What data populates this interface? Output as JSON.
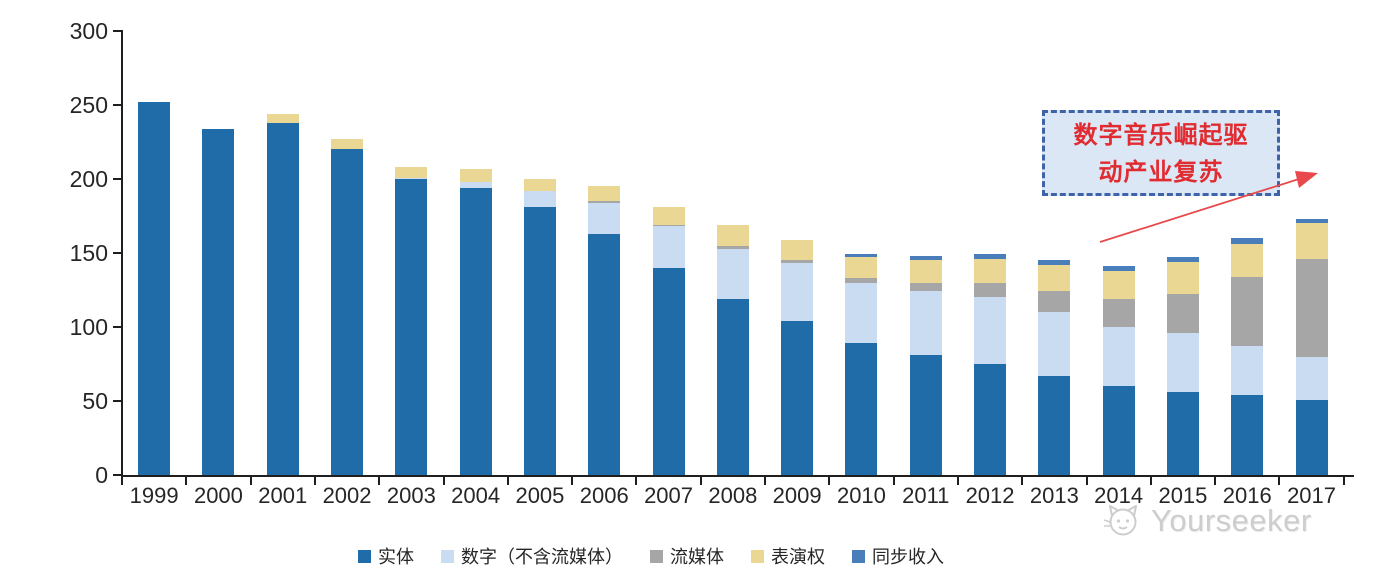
{
  "chart_data": {
    "type": "bar",
    "stacked": true,
    "title": "",
    "xlabel": "",
    "ylabel": "",
    "categories": [
      "1999",
      "2000",
      "2001",
      "2002",
      "2003",
      "2004",
      "2005",
      "2006",
      "2007",
      "2008",
      "2009",
      "2010",
      "2011",
      "2012",
      "2013",
      "2014",
      "2015",
      "2016",
      "2017"
    ],
    "series": [
      {
        "name": "实体",
        "color": "#1f6ca8",
        "values": [
          252,
          234,
          238,
          220,
          200,
          194,
          181,
          163,
          140,
          119,
          104,
          89,
          81,
          75,
          67,
          60,
          56,
          54,
          51
        ]
      },
      {
        "name": "数字（不含流媒体）",
        "color": "#c9dcf1",
        "values": [
          0,
          0,
          0,
          0,
          1,
          4,
          11,
          21,
          28,
          34,
          39,
          41,
          43,
          45,
          43,
          40,
          40,
          33,
          29
        ]
      },
      {
        "name": "流媒体",
        "color": "#a6a6a6",
        "values": [
          0,
          0,
          0,
          0,
          0,
          0,
          0,
          1,
          1,
          2,
          2,
          3,
          6,
          10,
          14,
          19,
          26,
          47,
          66
        ]
      },
      {
        "name": "表演权",
        "color": "#ebd794",
        "values": [
          0,
          0,
          6,
          7,
          7,
          9,
          8,
          10,
          12,
          14,
          14,
          14,
          15,
          16,
          18,
          19,
          22,
          22,
          24
        ]
      },
      {
        "name": "同步收入",
        "color": "#4a7ebb",
        "values": [
          0,
          0,
          0,
          0,
          0,
          0,
          0,
          0,
          0,
          0,
          0,
          2,
          3,
          3,
          3,
          3,
          3,
          4,
          3
        ]
      }
    ],
    "yticks": [
      0,
      50,
      100,
      150,
      200,
      250,
      300
    ],
    "ylim": [
      0,
      300
    ],
    "grid": false,
    "legend_position": "bottom"
  },
  "annotation": {
    "text": "数字音乐崛起驱动产业复苏"
  },
  "watermark": {
    "label": "Yourseeker",
    "icon": "cat-logo-icon"
  },
  "colors": {
    "axis": "#1f1f1f",
    "tick_label": "#262626",
    "annotation_text": "#e02b30",
    "annotation_border": "#3f63a8",
    "annotation_fill": "#dbe7f5",
    "arrow": "#e8494c",
    "watermark": "#cdcdcd"
  }
}
